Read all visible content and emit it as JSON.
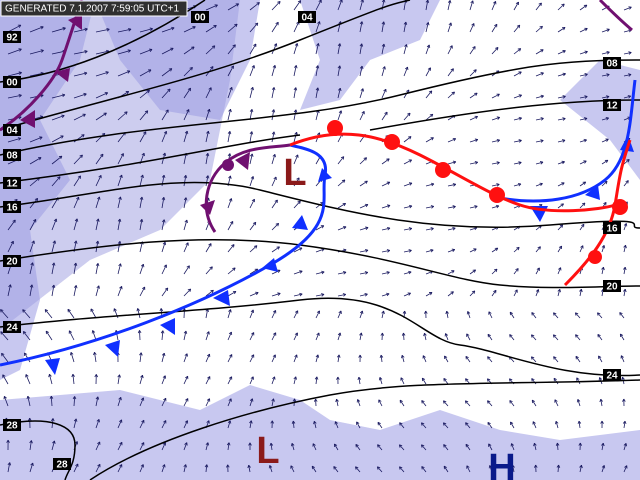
{
  "header": {
    "generated": "GENERATED 7.1.2007 7:59:05 UTC+1"
  },
  "isobar_labels": [
    "00",
    "04",
    "08",
    "12",
    "16",
    "20",
    "24",
    "92",
    "00",
    "04",
    "08",
    "12",
    "16",
    "20",
    "24",
    "28",
    "28"
  ],
  "pressure_centers": [
    "L",
    "L",
    "H"
  ]
}
